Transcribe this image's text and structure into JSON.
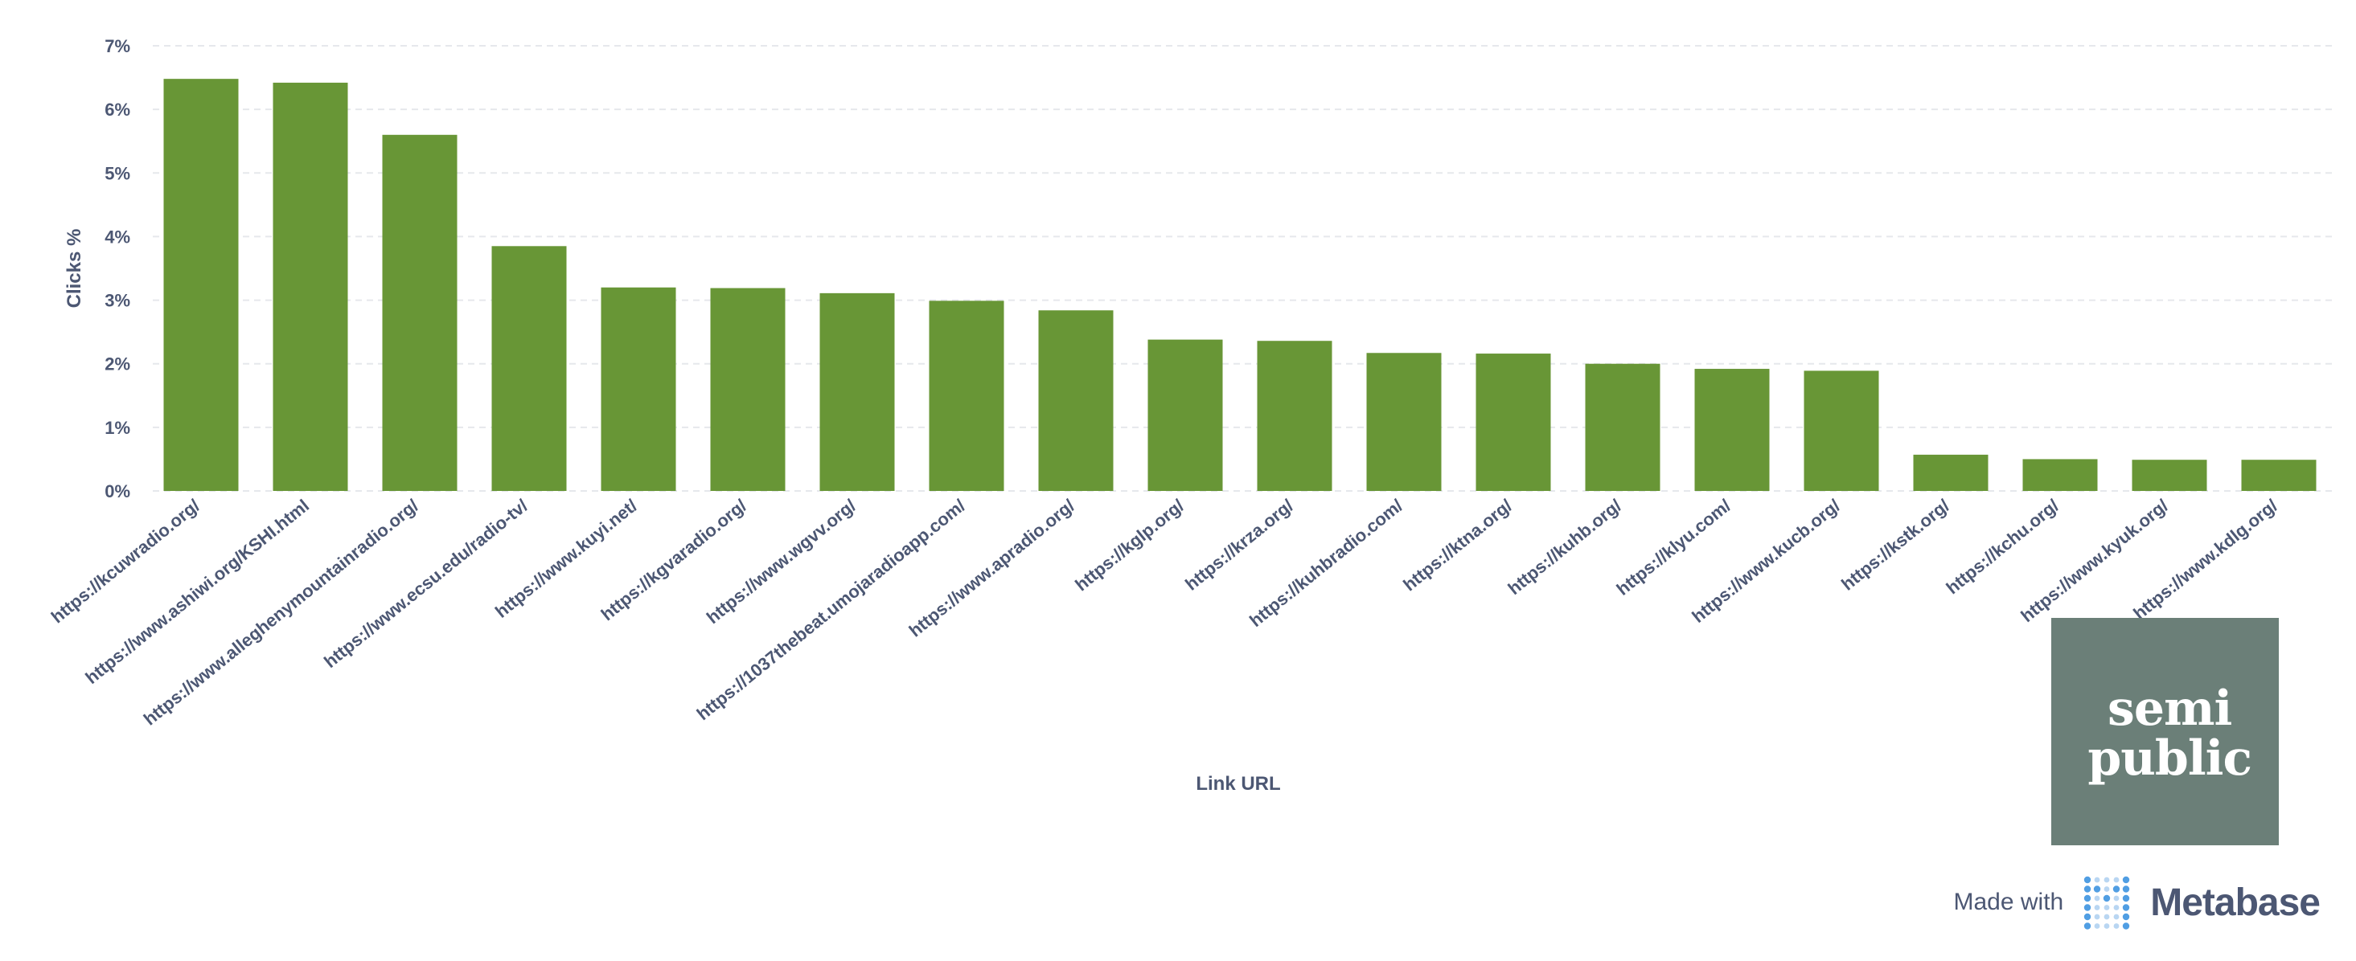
{
  "chart_data": {
    "type": "bar",
    "xlabel": "Link URL",
    "ylabel": "Clicks %",
    "ylim": [
      0,
      7
    ],
    "yticks": [
      "0%",
      "1%",
      "2%",
      "3%",
      "4%",
      "5%",
      "6%",
      "7%"
    ],
    "grid": true,
    "bar_color": "#689636",
    "categories": [
      "https://kcuwradio.org/",
      "https://www.ashiwi.org/KSHI.html",
      "https://www.alleghenymountainradio.org/",
      "https://www.ecsu.edu/radio-tv/",
      "https://www.kuyi.net/",
      "https://kgvaradio.org/",
      "https://www.wgvv.org/",
      "https://1037thebeat.umojaradioapp.com/",
      "https://www.apradio.org/",
      "https://kglp.org/",
      "https://krza.org/",
      "https://kuhbradio.com/",
      "https://ktna.org/",
      "https://kuhb.org/",
      "https://klyu.com/",
      "https://www.kucb.org/",
      "https://kstk.org/",
      "https://kchu.org/",
      "https://www.kyuk.org/",
      "https://www.kdlg.org/"
    ],
    "values": [
      6.48,
      6.42,
      5.6,
      3.85,
      3.2,
      3.19,
      3.11,
      2.99,
      2.84,
      2.38,
      2.36,
      2.17,
      2.16,
      2.0,
      1.92,
      1.89,
      0.57,
      0.5,
      0.49,
      0.49
    ]
  },
  "branding": {
    "logo_line1": "semi",
    "logo_line2": "public",
    "logo_color": "#6b7f78",
    "made_with": "Made with",
    "metabase": "Metabase",
    "metabase_icon": "metabase-dots-icon"
  }
}
